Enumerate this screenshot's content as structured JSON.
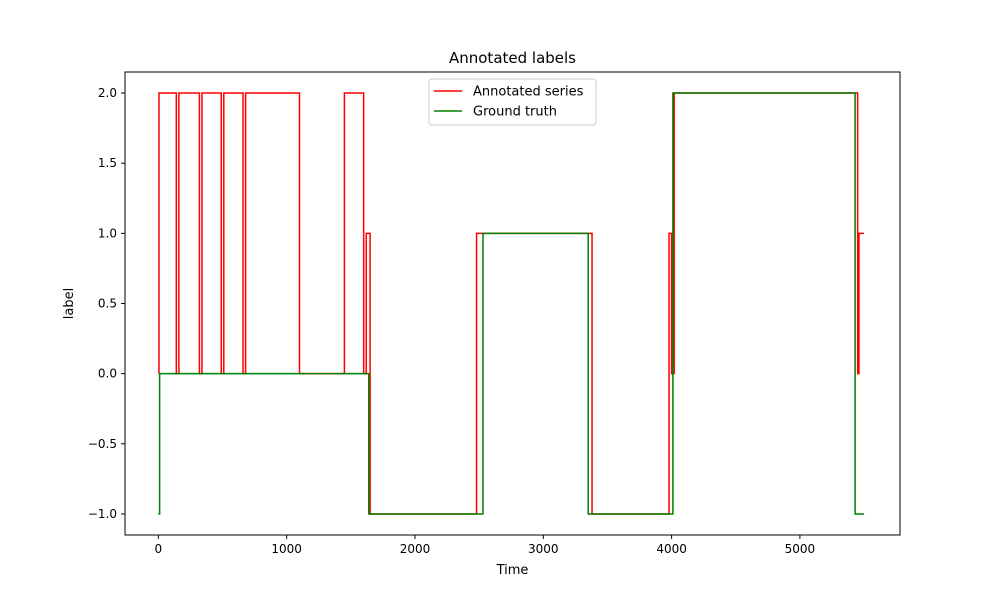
{
  "chart_data": {
    "type": "line",
    "title": "Annotated labels",
    "xlabel": "Time",
    "ylabel": "label",
    "xlim": [
      -260,
      5780
    ],
    "ylim": [
      -1.15,
      2.15
    ],
    "x_ticks": [
      0,
      1000,
      2000,
      3000,
      4000,
      5000
    ],
    "y_ticks": [
      -1.0,
      -0.5,
      0.0,
      0.5,
      1.0,
      1.5,
      2.0
    ],
    "x_tick_labels": [
      "0",
      "1000",
      "2000",
      "3000",
      "4000",
      "5000"
    ],
    "y_tick_labels": [
      "−1.0",
      "−0.5",
      "0.0",
      "0.5",
      "1.0",
      "1.5",
      "2.0"
    ],
    "grid": false,
    "legend": "upper center",
    "series": [
      {
        "name": "Annotated series",
        "color": "#ff0000",
        "x": [
          0,
          5,
          5,
          140,
          140,
          160,
          160,
          320,
          320,
          340,
          340,
          490,
          490,
          510,
          510,
          660,
          660,
          680,
          680,
          1100,
          1100,
          1450,
          1450,
          1600,
          1600,
          1620,
          1620,
          1650,
          1650,
          1670,
          1670,
          2480,
          2480,
          3380,
          3380,
          3980,
          3980,
          4000,
          4000,
          4020,
          4020,
          5450,
          5450,
          5460,
          5460,
          5500
        ],
        "y": [
          0,
          0,
          2,
          2,
          0,
          0,
          2,
          2,
          0,
          0,
          2,
          2,
          0,
          0,
          2,
          2,
          0,
          0,
          2,
          2,
          0,
          0,
          2,
          2,
          0,
          0,
          1,
          1,
          -1,
          -1,
          -1,
          -1,
          1,
          1,
          -1,
          -1,
          1,
          1,
          0,
          0,
          2,
          2,
          0,
          0,
          1,
          1
        ]
      },
      {
        "name": "Ground truth",
        "color": "#008000",
        "x": [
          0,
          10,
          10,
          1640,
          1640,
          2530,
          2530,
          3350,
          3350,
          4010,
          4010,
          5430,
          5430,
          5500
        ],
        "y": [
          -1,
          -1,
          0,
          0,
          -1,
          -1,
          1,
          1,
          -1,
          -1,
          2,
          2,
          -1,
          -1
        ]
      }
    ]
  }
}
